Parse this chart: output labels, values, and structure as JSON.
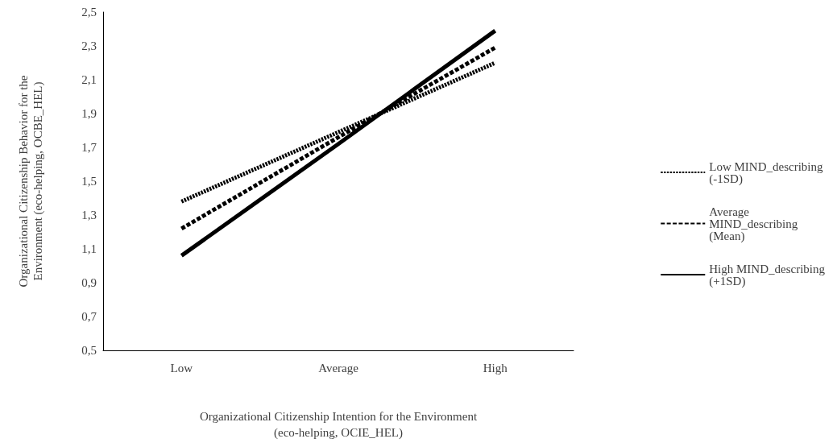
{
  "chart_data": {
    "type": "line",
    "xlabel": "Organizational Citizenship Intention for the Environment\n(eco-helping, OCIE_HEL)",
    "ylabel": "Organizational Citizenship Behavior for the\nEnvironment (eco-helping, OCBE_HEL)",
    "categories": [
      "Low",
      "Average",
      "High"
    ],
    "series": [
      {
        "name": "Low MIND_describing\n(-1SD)",
        "color": "#000000",
        "line_style": "dashed",
        "values": [
          1.38,
          1.79,
          2.2
        ]
      },
      {
        "name": "Average\nMIND_describing\n(Mean)",
        "color": "#000000",
        "line_style": "longdash",
        "values": [
          1.22,
          1.76,
          2.29
        ]
      },
      {
        "name": "High MIND_describing\n(+1SD)",
        "color": "#000000",
        "line_style": "solid",
        "values": [
          1.06,
          1.72,
          2.39
        ]
      }
    ],
    "ylim": [
      0.5,
      2.5
    ],
    "yticks": [
      {
        "value": 0.5,
        "label": "0,5"
      },
      {
        "value": 0.7,
        "label": "0,7"
      },
      {
        "value": 0.9,
        "label": "0,9"
      },
      {
        "value": 1.1,
        "label": "1,1"
      },
      {
        "value": 1.3,
        "label": "1,3"
      },
      {
        "value": 1.5,
        "label": "1,5"
      },
      {
        "value": 1.7,
        "label": "1,7"
      },
      {
        "value": 1.9,
        "label": "1,9"
      },
      {
        "value": 2.1,
        "label": "2,1"
      },
      {
        "value": 2.3,
        "label": "2,3"
      },
      {
        "value": 2.5,
        "label": "2,5"
      }
    ],
    "grid": false,
    "legend": "right",
    "marker": "none"
  }
}
